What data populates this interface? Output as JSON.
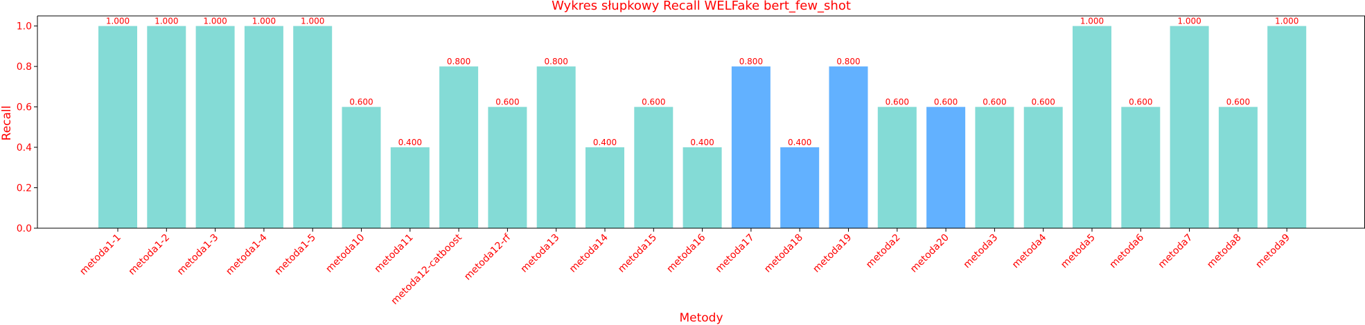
{
  "chart_data": {
    "type": "bar",
    "title": "Wykres słupkowy Recall WELFake bert_few_shot",
    "xlabel": "Metody",
    "ylabel": "Recall",
    "ylim": [
      0,
      1.05
    ],
    "yticks": [
      "0.0",
      "0.2",
      "0.4",
      "0.6",
      "0.8",
      "1.0"
    ],
    "grid": false,
    "categories": [
      "metoda1-1",
      "metoda1-2",
      "metoda1-3",
      "metoda1-4",
      "metoda1-5",
      "metoda10",
      "metoda11",
      "metoda12-catboost",
      "metoda12-rf",
      "metoda13",
      "metoda14",
      "metoda15",
      "metoda16",
      "metoda17",
      "metoda18",
      "metoda19",
      "metoda2",
      "metoda20",
      "metoda3",
      "metoda4",
      "metoda5",
      "metoda6",
      "metoda7",
      "metoda8",
      "metoda9"
    ],
    "values": [
      1.0,
      1.0,
      1.0,
      1.0,
      1.0,
      0.6,
      0.4,
      0.8,
      0.6,
      0.8,
      0.4,
      0.6,
      0.4,
      0.8,
      0.4,
      0.8,
      0.6,
      0.6,
      0.6,
      0.6,
      1.0,
      0.6,
      1.0,
      0.6,
      1.0
    ],
    "value_labels": [
      "1.000",
      "1.000",
      "1.000",
      "1.000",
      "1.000",
      "0.600",
      "0.400",
      "0.800",
      "0.600",
      "0.800",
      "0.400",
      "0.600",
      "0.400",
      "0.800",
      "0.400",
      "0.800",
      "0.600",
      "0.600",
      "0.600",
      "0.600",
      "1.000",
      "0.600",
      "1.000",
      "0.600",
      "1.000"
    ],
    "bar_colors": [
      "#84dbd6",
      "#84dbd6",
      "#84dbd6",
      "#84dbd6",
      "#84dbd6",
      "#84dbd6",
      "#84dbd6",
      "#84dbd6",
      "#84dbd6",
      "#84dbd6",
      "#84dbd6",
      "#84dbd6",
      "#84dbd6",
      "#62b1ff",
      "#62b1ff",
      "#62b1ff",
      "#84dbd6",
      "#62b1ff",
      "#84dbd6",
      "#84dbd6",
      "#84dbd6",
      "#84dbd6",
      "#84dbd6",
      "#84dbd6",
      "#84dbd6"
    ],
    "text_color": "#ff0000",
    "axis_color": "#000000"
  }
}
